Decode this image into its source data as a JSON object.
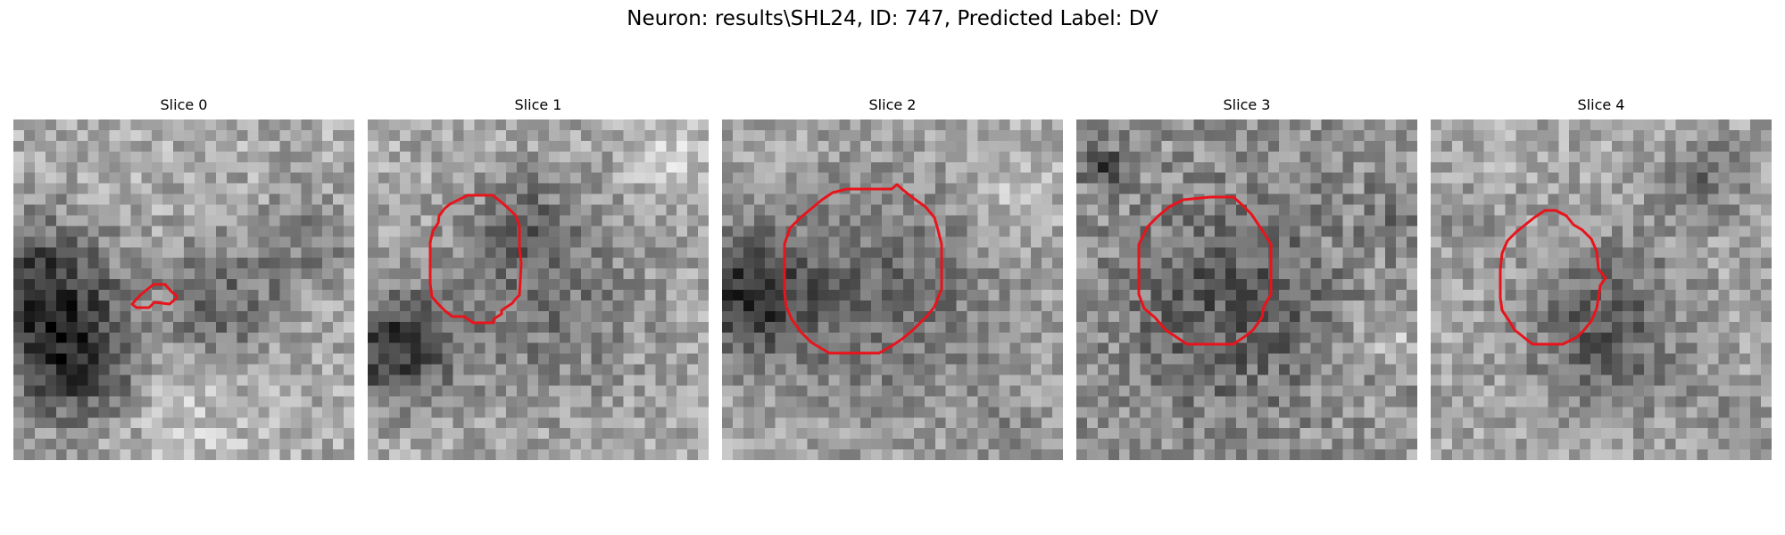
{
  "figure": {
    "title": "Neuron: results\\SHL24, ID: 747, Predicted Label: DV",
    "outline_color": "#e8141c"
  },
  "slices": [
    {
      "label": "Slice 0"
    },
    {
      "label": "Slice 1"
    },
    {
      "label": "Slice 2"
    },
    {
      "label": "Slice 3"
    },
    {
      "label": "Slice 4"
    }
  ]
}
